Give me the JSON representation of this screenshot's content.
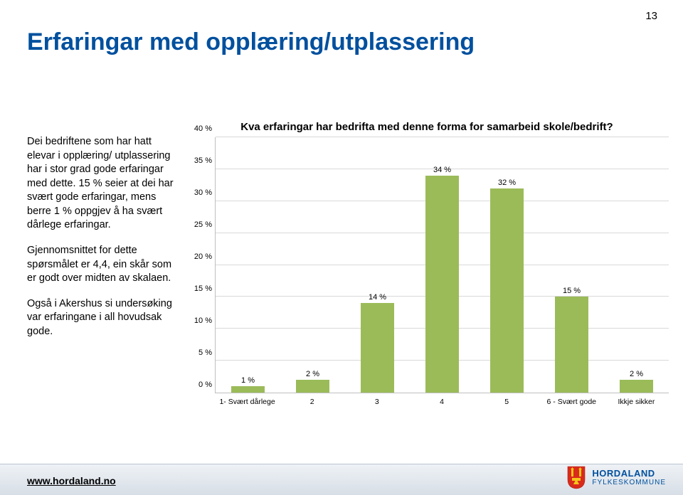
{
  "page_number": "13",
  "title": "Erfaringar med opplæring/utplassering",
  "paragraphs": [
    "Dei bedriftene som har hatt elevar i opplæring/ utplassering har i stor grad gode erfaringar med dette. 15 % seier at dei har svært gode erfaringar, mens berre 1 % oppgjev å ha svært dårlege erfaringar.",
    "Gjennomsnittet for dette spørsmålet er 4,4, ein skår som er godt over midten av skalaen.",
    "Også i Akershus si undersøking var erfaringane i all hovudsak gode."
  ],
  "chart": {
    "type": "bar",
    "title": "Kva erfaringar har bedrifta med denne forma for samarbeid skole/bedrift?",
    "categories": [
      "1- Svært dårlege",
      "2",
      "3",
      "4",
      "5",
      "6 - Svært gode",
      "Ikkje sikker"
    ],
    "values": [
      1,
      2,
      14,
      34,
      32,
      15,
      2
    ],
    "value_labels": [
      "1 %",
      "2 %",
      "14 %",
      "34 %",
      "32 %",
      "15 %",
      "2 %"
    ],
    "bar_color": "#9bbb59",
    "ymax": 40,
    "ytick_step": 5,
    "ytick_labels": [
      "0 %",
      "5 %",
      "10 %",
      "15 %",
      "20 %",
      "25 %",
      "30 %",
      "35 %",
      "40 %"
    ],
    "grid_color": "#d9d9d9",
    "axis_color": "#bfbfbf",
    "background_color": "#ffffff",
    "title_fontsize": 15,
    "label_fontsize": 11,
    "bar_width_ratio": 0.52
  },
  "footer": {
    "link": "www.hordaland.no",
    "org_name": "HORDALAND",
    "org_sub": "FYLKESKOMMUNE"
  },
  "colors": {
    "title_color": "#00509e",
    "text_color": "#000000"
  }
}
